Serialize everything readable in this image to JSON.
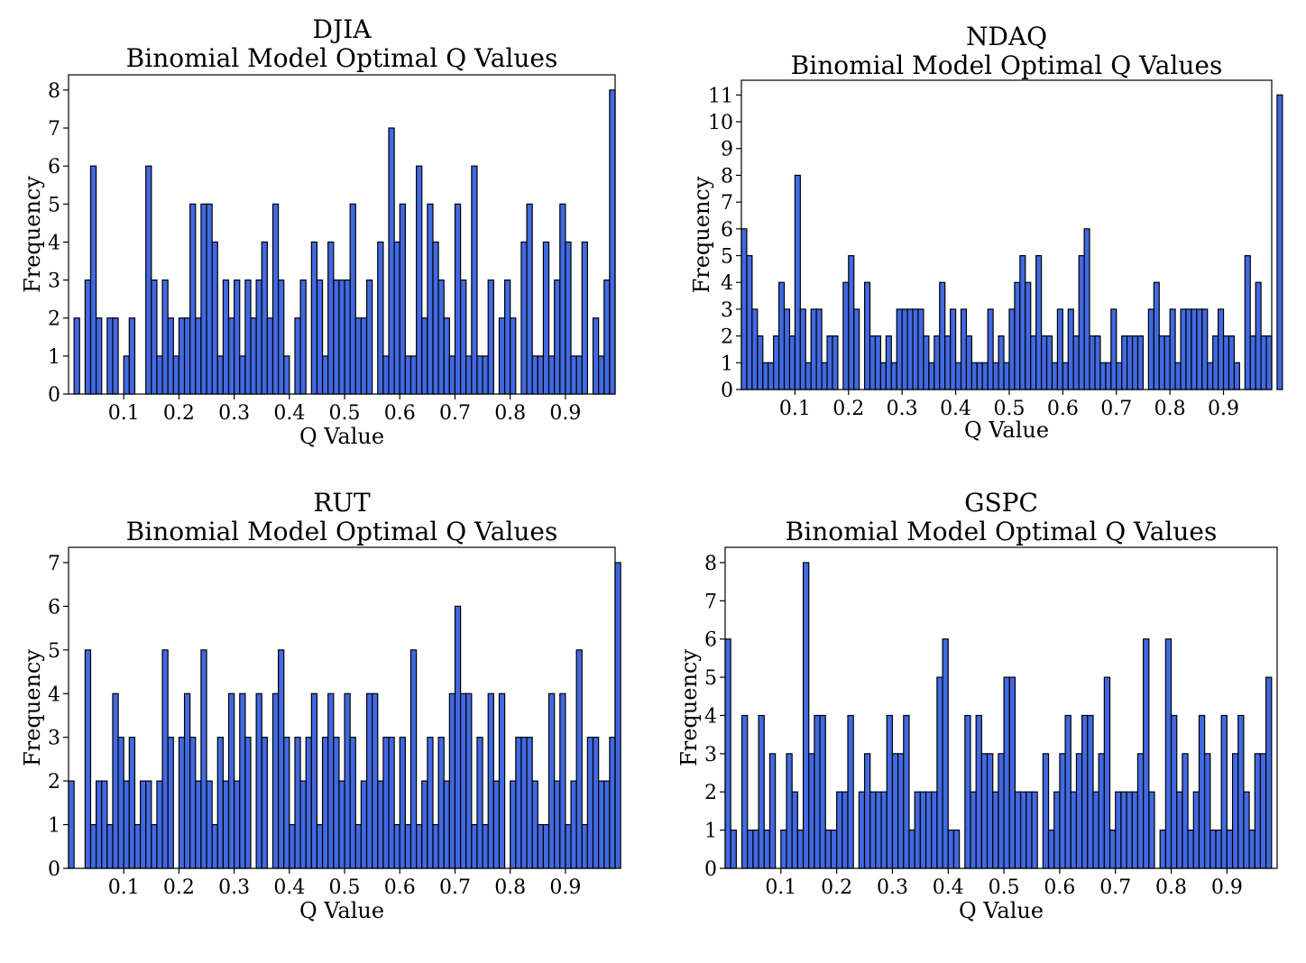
{
  "style": {
    "bar_color": "#4169E1",
    "edge_color": "#000000"
  },
  "chart_data": [
    {
      "type": "bar",
      "title": "DJIA",
      "subtitle": "Binomial Model Optimal Q Values",
      "xlabel": "Q Value",
      "ylabel": "Frequency",
      "xlim": [
        0.0,
        0.99
      ],
      "ylim": [
        0,
        8.4
      ],
      "xticks": [
        "0.1",
        "0.2",
        "0.3",
        "0.4",
        "0.5",
        "0.6",
        "0.7",
        "0.8",
        "0.9"
      ],
      "yticks": [
        "0",
        "1",
        "2",
        "3",
        "4",
        "5",
        "6",
        "7",
        "8"
      ],
      "grid": false,
      "x_start": 0.01,
      "bin_width": 0.01,
      "values": [
        2,
        0,
        3,
        6,
        2,
        0,
        2,
        2,
        0,
        1,
        2,
        0,
        0,
        6,
        3,
        1,
        3,
        2,
        1,
        2,
        2,
        5,
        2,
        5,
        5,
        4,
        1,
        3,
        2,
        3,
        1,
        3,
        2,
        3,
        4,
        2,
        5,
        3,
        1,
        0,
        2,
        3,
        0,
        4,
        3,
        1,
        4,
        3,
        3,
        3,
        5,
        2,
        2,
        3,
        0,
        4,
        1,
        7,
        4,
        5,
        1,
        1,
        6,
        2,
        5,
        4,
        3,
        2,
        1,
        5,
        3,
        1,
        6,
        1,
        1,
        3,
        0,
        2,
        3,
        2,
        0,
        4,
        5,
        1,
        1,
        4,
        1,
        3,
        5,
        4,
        1,
        1,
        4,
        0,
        2,
        1,
        3,
        8
      ]
    },
    {
      "type": "bar",
      "title": "NDAQ",
      "subtitle": "Binomial Model Optimal Q Values",
      "xlabel": "Q Value",
      "ylabel": "Frequency",
      "xlim": [
        0.0,
        0.99
      ],
      "ylim": [
        0,
        11.55
      ],
      "xticks": [
        "0.1",
        "0.2",
        "0.3",
        "0.4",
        "0.5",
        "0.6",
        "0.7",
        "0.8",
        "0.9"
      ],
      "yticks": [
        "0",
        "1",
        "2",
        "3",
        "4",
        "5",
        "6",
        "7",
        "8",
        "9",
        "10",
        "11"
      ],
      "grid": false,
      "x_start": 0.0,
      "bin_width": 0.01,
      "values": [
        6,
        5,
        3,
        2,
        1,
        1,
        2,
        4,
        3,
        2,
        8,
        3,
        1,
        3,
        3,
        1,
        2,
        2,
        0,
        4,
        5,
        3,
        0,
        4,
        2,
        2,
        1,
        2,
        1,
        3,
        3,
        3,
        3,
        3,
        2,
        1,
        2,
        4,
        2,
        3,
        1,
        3,
        2,
        1,
        1,
        1,
        3,
        1,
        2,
        1,
        3,
        4,
        5,
        4,
        2,
        5,
        2,
        2,
        1,
        3,
        1,
        3,
        2,
        5,
        6,
        2,
        2,
        1,
        1,
        3,
        1,
        2,
        2,
        2,
        2,
        0,
        3,
        4,
        2,
        2,
        3,
        1,
        3,
        3,
        3,
        3,
        3,
        1,
        2,
        3,
        2,
        2,
        1,
        0,
        5,
        2,
        4,
        2,
        2,
        0,
        11
      ]
    },
    {
      "type": "bar",
      "title": "RUT",
      "subtitle": "Binomial Model Optimal Q Values",
      "xlabel": "Q Value",
      "ylabel": "Frequency",
      "xlim": [
        0.0,
        0.99
      ],
      "ylim": [
        0,
        7.35
      ],
      "xticks": [
        "0.1",
        "0.2",
        "0.3",
        "0.4",
        "0.5",
        "0.6",
        "0.7",
        "0.8",
        "0.9"
      ],
      "yticks": [
        "0",
        "1",
        "2",
        "3",
        "4",
        "5",
        "6",
        "7"
      ],
      "grid": false,
      "x_start": 0.0,
      "bin_width": 0.01,
      "values": [
        2,
        0,
        0,
        5,
        1,
        2,
        2,
        1,
        4,
        3,
        2,
        3,
        1,
        2,
        2,
        1,
        2,
        5,
        3,
        0,
        3,
        4,
        3,
        2,
        5,
        2,
        1,
        3,
        2,
        4,
        2,
        4,
        3,
        0,
        4,
        3,
        0,
        4,
        5,
        3,
        1,
        3,
        2,
        3,
        4,
        1,
        3,
        4,
        3,
        2,
        4,
        3,
        1,
        2,
        4,
        4,
        2,
        3,
        3,
        1,
        3,
        1,
        5,
        1,
        2,
        3,
        1,
        3,
        2,
        4,
        6,
        4,
        4,
        1,
        3,
        1,
        4,
        2,
        4,
        0,
        2,
        3,
        3,
        3,
        2,
        1,
        1,
        4,
        2,
        4,
        1,
        2,
        5,
        1,
        3,
        3,
        2,
        2,
        3,
        7
      ]
    },
    {
      "type": "bar",
      "title": "GSPC",
      "subtitle": "Binomial Model Optimal Q Values",
      "xlabel": "Q Value",
      "ylabel": "Frequency",
      "xlim": [
        0.0,
        0.99
      ],
      "ylim": [
        0,
        8.4
      ],
      "xticks": [
        "0.1",
        "0.2",
        "0.3",
        "0.4",
        "0.5",
        "0.6",
        "0.7",
        "0.8",
        "0.9"
      ],
      "yticks": [
        "0",
        "1",
        "2",
        "3",
        "4",
        "5",
        "6",
        "7",
        "8"
      ],
      "grid": false,
      "x_start": 0.0,
      "bin_width": 0.01,
      "values": [
        6,
        1,
        0,
        4,
        1,
        1,
        4,
        1,
        3,
        0,
        1,
        3,
        2,
        1,
        8,
        3,
        4,
        4,
        1,
        1,
        2,
        2,
        4,
        0,
        2,
        3,
        2,
        2,
        2,
        4,
        3,
        3,
        4,
        1,
        2,
        2,
        2,
        2,
        5,
        6,
        1,
        1,
        0,
        4,
        2,
        4,
        3,
        3,
        2,
        3,
        5,
        5,
        2,
        2,
        2,
        2,
        0,
        3,
        1,
        2,
        3,
        4,
        2,
        3,
        4,
        4,
        2,
        3,
        5,
        1,
        2,
        2,
        2,
        2,
        3,
        6,
        2,
        0,
        1,
        6,
        4,
        2,
        3,
        1,
        2,
        4,
        3,
        1,
        1,
        4,
        1,
        3,
        4,
        2,
        1,
        3,
        3,
        5
      ]
    }
  ]
}
